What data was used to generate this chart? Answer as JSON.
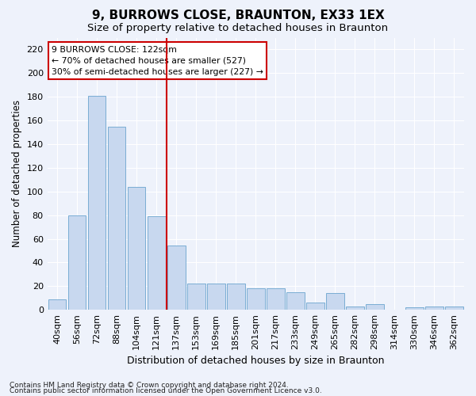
{
  "title": "9, BURROWS CLOSE, BRAUNTON, EX33 1EX",
  "subtitle": "Size of property relative to detached houses in Braunton",
  "xlabel": "Distribution of detached houses by size in Braunton",
  "ylabel": "Number of detached properties",
  "categories": [
    "40sqm",
    "56sqm",
    "72sqm",
    "88sqm",
    "104sqm",
    "121sqm",
    "137sqm",
    "153sqm",
    "169sqm",
    "185sqm",
    "201sqm",
    "217sqm",
    "233sqm",
    "249sqm",
    "265sqm",
    "282sqm",
    "298sqm",
    "314sqm",
    "330sqm",
    "346sqm",
    "362sqm"
  ],
  "values": [
    9,
    80,
    181,
    155,
    104,
    79,
    54,
    22,
    22,
    22,
    18,
    18,
    15,
    6,
    14,
    3,
    5,
    0,
    2,
    3,
    3
  ],
  "bar_color": "#c8d8ef",
  "bar_edge_color": "#7aadd4",
  "vline_x_index": 5,
  "vline_color": "#cc0000",
  "ylim": [
    0,
    230
  ],
  "yticks": [
    0,
    20,
    40,
    60,
    80,
    100,
    120,
    140,
    160,
    180,
    200,
    220
  ],
  "annotation_title": "9 BURROWS CLOSE: 122sqm",
  "annotation_line1": "← 70% of detached houses are smaller (527)",
  "annotation_line2": "30% of semi-detached houses are larger (227) →",
  "annotation_box_color": "#cc0000",
  "footnote1": "Contains HM Land Registry data © Crown copyright and database right 2024.",
  "footnote2": "Contains public sector information licensed under the Open Government Licence v3.0.",
  "bg_color": "#eef2fb",
  "grid_color": "#ffffff",
  "title_fontsize": 11,
  "subtitle_fontsize": 9.5,
  "xlabel_fontsize": 9,
  "ylabel_fontsize": 8.5,
  "tick_fontsize": 8,
  "footnote_fontsize": 6.5
}
